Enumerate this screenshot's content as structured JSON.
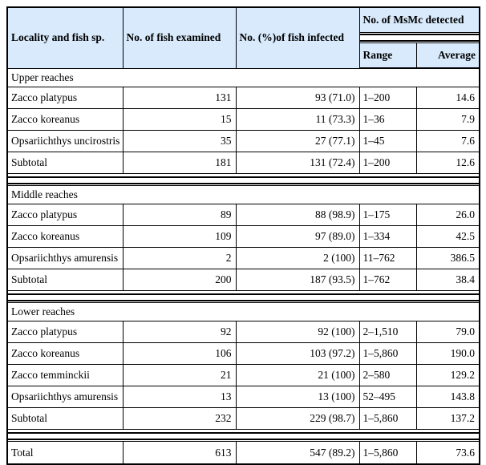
{
  "table": {
    "headers": {
      "locality": "Locality and fish sp.",
      "examined": "No. of fish examined",
      "infected": "No. (%)of fish infected",
      "msmc": "No. of MsMc detected",
      "range": "Range",
      "average": "Average"
    },
    "colors": {
      "header_bg": "#d8eafb",
      "border": "#000000",
      "background": "#ffffff"
    },
    "sections": [
      {
        "title": "Upper reaches",
        "rows": [
          {
            "species": "Zacco platypus",
            "examined": "131",
            "infected": "93 (71.0)",
            "range": "1–200",
            "average": "14.6"
          },
          {
            "species": "Zacco koreanus",
            "examined": "15",
            "infected": "11 (73.3)",
            "range": "1–36",
            "average": "7.9"
          },
          {
            "species": "Opsariichthys uncirostris",
            "examined": "35",
            "infected": "27 (77.1)",
            "range": "1–45",
            "average": "7.6"
          },
          {
            "species": "Subtotal",
            "examined": "181",
            "infected": "131 (72.4)",
            "range": "1–200",
            "average": "12.6"
          }
        ]
      },
      {
        "title": "Middle reaches",
        "rows": [
          {
            "species": "Zacco platypus",
            "examined": "89",
            "infected": "88 (98.9)",
            "range": "1–175",
            "average": "26.0"
          },
          {
            "species": "Zacco koreanus",
            "examined": "109",
            "infected": "97 (89.0)",
            "range": "1–334",
            "average": "42.5"
          },
          {
            "species": "Opsariichthys amurensis",
            "examined": "2",
            "infected": "2 (100)",
            "range": "11–762",
            "average": "386.5"
          },
          {
            "species": "Subtotal",
            "examined": "200",
            "infected": "187 (93.5)",
            "range": "1–762",
            "average": "38.4"
          }
        ]
      },
      {
        "title": "Lower reaches",
        "rows": [
          {
            "species": "Zacco platypus",
            "examined": "92",
            "infected": "92 (100)",
            "range": "2–1,510",
            "average": "79.0"
          },
          {
            "species": "Zacco koreanus",
            "examined": "106",
            "infected": "103 (97.2)",
            "range": "1–5,860",
            "average": "190.0"
          },
          {
            "species": "Zacco temminckii",
            "examined": "21",
            "infected": "21 (100)",
            "range": "2–580",
            "average": "129.2"
          },
          {
            "species": "Opsariichthys amurensis",
            "examined": "13",
            "infected": "13 (100)",
            "range": "52–495",
            "average": "143.8"
          },
          {
            "species": "Subtotal",
            "examined": "232",
            "infected": "229 (98.7)",
            "range": "1–5,860",
            "average": "137.2"
          }
        ]
      }
    ],
    "total": {
      "species": "Total",
      "examined": "613",
      "infected": "547 (89.2)",
      "range": "1–5,860",
      "average": "73.6"
    }
  }
}
